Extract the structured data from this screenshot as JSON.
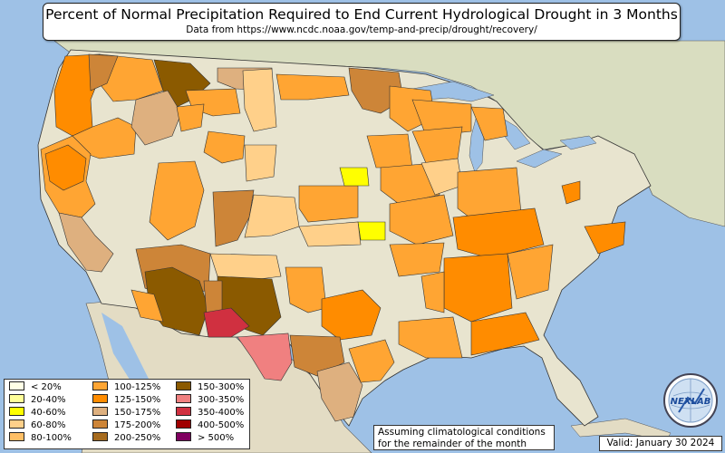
{
  "title": "Percent of Normal Precipitation Required to End Current Hydrological Drought in 3 Months",
  "subtitle": "Data from https://www.ncdc.noaa.gov/temp-and-precip/drought/recovery/",
  "legend": [
    {
      "label": "< 20%",
      "color": "#ffffe6"
    },
    {
      "label": "20-40%",
      "color": "#ffff99"
    },
    {
      "label": "40-60%",
      "color": "#ffff00"
    },
    {
      "label": "60-80%",
      "color": "#ffd08a"
    },
    {
      "label": "80-100%",
      "color": "#ffbf66"
    },
    {
      "label": "100-125%",
      "color": "#ffa533"
    },
    {
      "label": "125-150%",
      "color": "#ff8c00"
    },
    {
      "label": "150-175%",
      "color": "#deb07f"
    },
    {
      "label": "175-200%",
      "color": "#cd8538"
    },
    {
      "label": "200-250%",
      "color": "#a66b1e"
    },
    {
      "label": "150-300%",
      "color": "#8b5a00"
    },
    {
      "label": "300-350%",
      "color": "#f08080"
    },
    {
      "label": "350-400%",
      "color": "#d03040"
    },
    {
      "label": "400-500%",
      "color": "#a00000"
    },
    {
      "label": "> 500%",
      "color": "#800060"
    }
  ],
  "note": "Assuming climatological conditions for the remainder of the month",
  "valid": "Valid: January 30 2024",
  "logo_text": "NEXLAB",
  "colors": {
    "ocean": "#9ec1e6",
    "land": "#e8e4cf",
    "canada": "#d9ddc0",
    "mexico": "#e3dcc4",
    "great_lakes": "#9ec1e6"
  }
}
